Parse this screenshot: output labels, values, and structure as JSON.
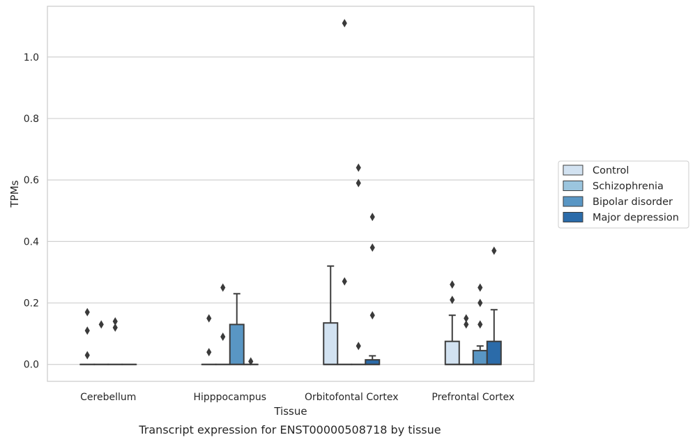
{
  "caption": "Transcript expression for ENST00000508718 by tissue",
  "chart_data": {
    "type": "box",
    "xlabel": "Tissue",
    "ylabel": "TPMs",
    "ylim": [
      -0.055,
      1.165
    ],
    "yticks": [
      "0.0",
      "0.2",
      "0.4",
      "0.6",
      "0.8",
      "1.0"
    ],
    "ytick_values": [
      0.0,
      0.2,
      0.4,
      0.6,
      0.8,
      1.0
    ],
    "grid": true,
    "legend_position": "right",
    "categories": [
      "Cerebellum",
      "Hipppocampus",
      "Orbitofontal Cortex",
      "Prefrontal Cortex"
    ],
    "series": [
      {
        "name": "Control",
        "color": "#d2e2f1",
        "boxes": [
          {
            "q1": 0,
            "median": 0,
            "q3": 0,
            "whisker_low": 0,
            "whisker_high": 0,
            "outliers": [
              0.03,
              0.11,
              0.17
            ]
          },
          {
            "q1": 0,
            "median": 0,
            "q3": 0,
            "whisker_low": 0,
            "whisker_high": 0,
            "outliers": [
              0.04,
              0.15
            ]
          },
          {
            "q1": 0,
            "median": 0,
            "q3": 0.135,
            "whisker_low": 0,
            "whisker_high": 0.32,
            "outliers": []
          },
          {
            "q1": 0,
            "median": 0,
            "q3": 0.075,
            "whisker_low": 0,
            "whisker_high": 0.16,
            "outliers": [
              0.21,
              0.26
            ]
          }
        ]
      },
      {
        "name": "Schizophrenia",
        "color": "#9bc5de",
        "boxes": [
          {
            "q1": 0,
            "median": 0,
            "q3": 0,
            "whisker_low": 0,
            "whisker_high": 0,
            "outliers": [
              0.13
            ]
          },
          {
            "q1": 0,
            "median": 0,
            "q3": 0,
            "whisker_low": 0,
            "whisker_high": 0,
            "outliers": [
              0.09,
              0.25
            ]
          },
          {
            "q1": 0,
            "median": 0,
            "q3": 0,
            "whisker_low": 0,
            "whisker_high": 0,
            "outliers": [
              0.27,
              1.11
            ]
          },
          {
            "q1": 0,
            "median": 0,
            "q3": 0,
            "whisker_low": 0,
            "whisker_high": 0,
            "outliers": [
              0.13,
              0.15
            ]
          }
        ]
      },
      {
        "name": "Bipolar disorder",
        "color": "#5996c4",
        "boxes": [
          {
            "q1": 0,
            "median": 0,
            "q3": 0,
            "whisker_low": 0,
            "whisker_high": 0,
            "outliers": [
              0.12,
              0.14
            ]
          },
          {
            "q1": 0,
            "median": 0,
            "q3": 0.13,
            "whisker_low": 0,
            "whisker_high": 0.23,
            "outliers": []
          },
          {
            "q1": 0,
            "median": 0,
            "q3": 0,
            "whisker_low": 0,
            "whisker_high": 0,
            "outliers": [
              0.06,
              0.59,
              0.64
            ]
          },
          {
            "q1": 0,
            "median": 0,
            "q3": 0.045,
            "whisker_low": 0,
            "whisker_high": 0.06,
            "outliers": [
              0.13,
              0.2,
              0.25
            ]
          }
        ]
      },
      {
        "name": "Major depression",
        "color": "#2b6ba9",
        "boxes": [
          {
            "q1": 0,
            "median": 0,
            "q3": 0,
            "whisker_low": 0,
            "whisker_high": 0,
            "outliers": []
          },
          {
            "q1": 0,
            "median": 0,
            "q3": 0,
            "whisker_low": 0,
            "whisker_high": 0,
            "outliers": [
              0.01
            ]
          },
          {
            "q1": 0,
            "median": 0,
            "q3": 0.015,
            "whisker_low": 0,
            "whisker_high": 0.028,
            "outliers": [
              0.16,
              0.38,
              0.48
            ]
          },
          {
            "q1": 0,
            "median": 0,
            "q3": 0.075,
            "whisker_low": 0,
            "whisker_high": 0.178,
            "outliers": [
              0.37
            ]
          }
        ]
      }
    ]
  }
}
